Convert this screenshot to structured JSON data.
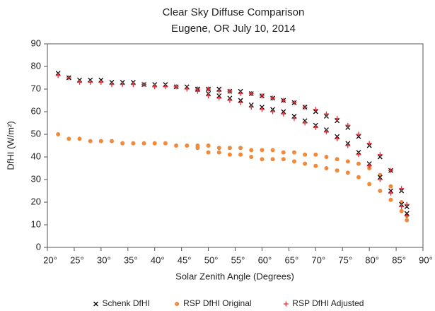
{
  "chart_data": {
    "type": "scatter",
    "title": "Clear Sky Diffuse Comparison",
    "subtitle": "Eugene, OR  July 10, 2014",
    "x_label": "Solar Zenith Angle (Degrees)",
    "y_label": "DfHI (W/m²)",
    "xlim": [
      20,
      90
    ],
    "xticks": [
      {
        "value": 20,
        "label": "20°"
      },
      {
        "value": 25,
        "label": "25°"
      },
      {
        "value": 30,
        "label": "30°"
      },
      {
        "value": 35,
        "label": "35°"
      },
      {
        "value": 40,
        "label": "40°"
      },
      {
        "value": 45,
        "label": "45°"
      },
      {
        "value": 50,
        "label": "50°"
      },
      {
        "value": 55,
        "label": "55°"
      },
      {
        "value": 60,
        "label": "60°"
      },
      {
        "value": 65,
        "label": "65°"
      },
      {
        "value": 70,
        "label": "70°"
      },
      {
        "value": 75,
        "label": "75°"
      },
      {
        "value": 80,
        "label": "80°"
      },
      {
        "value": 85,
        "label": "85°"
      },
      {
        "value": 90,
        "label": "90°"
      }
    ],
    "ylim": [
      0,
      90
    ],
    "yticks": [
      0,
      10,
      20,
      30,
      40,
      50,
      60,
      70,
      80,
      90
    ],
    "grid": false,
    "legend": "bottom",
    "x": [
      22,
      24,
      26,
      28,
      30,
      32,
      34,
      36,
      38,
      40,
      42,
      44,
      46,
      48,
      50,
      52,
      54,
      56,
      58,
      60,
      62,
      64,
      66,
      68,
      70,
      72,
      74,
      76,
      78,
      80,
      82,
      84,
      86,
      87,
      48,
      50,
      52,
      54,
      56,
      58,
      60,
      62,
      64,
      66,
      68,
      70,
      72,
      74,
      76,
      78,
      80,
      82,
      84,
      86,
      87
    ],
    "series": [
      {
        "name": "Schenk DfHI",
        "color": "#000000",
        "marker": "x",
        "values": [
          77,
          75,
          74,
          74,
          74,
          73,
          73,
          73,
          72,
          72,
          72,
          71,
          71,
          70,
          70,
          70,
          69,
          69,
          68,
          67,
          66,
          65,
          64,
          62,
          60,
          58,
          56,
          53,
          49,
          45,
          40,
          34,
          25,
          18,
          70,
          68,
          67,
          66,
          65,
          63,
          62,
          61,
          60,
          58,
          56,
          54,
          52,
          49,
          46,
          42,
          37,
          31,
          25,
          19,
          15
        ]
      },
      {
        "name": "RSP DfHI Original",
        "color": "#f08a3c",
        "marker": "circle",
        "values": [
          50,
          48,
          48,
          47,
          47,
          47,
          46,
          46,
          46,
          46,
          46,
          45,
          45,
          45,
          45,
          44,
          44,
          44,
          43,
          43,
          43,
          42,
          42,
          41,
          41,
          40,
          39,
          38,
          37,
          35,
          32,
          27,
          20,
          14,
          44,
          42,
          42,
          41,
          41,
          40,
          39,
          39,
          39,
          38,
          37,
          36,
          35,
          34,
          33,
          31,
          28,
          25,
          21,
          16,
          12
        ]
      },
      {
        "name": "RSP DfHI Adjusted",
        "color": "#e8303a",
        "marker": "plus",
        "values": [
          76,
          75,
          73,
          73,
          73,
          72,
          72,
          72,
          72,
          71,
          71,
          71,
          70,
          70,
          70,
          69,
          69,
          68,
          68,
          67,
          66,
          65,
          64,
          62,
          61,
          59,
          57,
          54,
          50,
          46,
          41,
          34,
          26,
          19,
          69,
          67,
          66,
          65,
          64,
          62,
          61,
          60,
          59,
          57,
          55,
          53,
          51,
          48,
          45,
          41,
          36,
          30,
          24,
          18,
          14
        ]
      }
    ]
  }
}
